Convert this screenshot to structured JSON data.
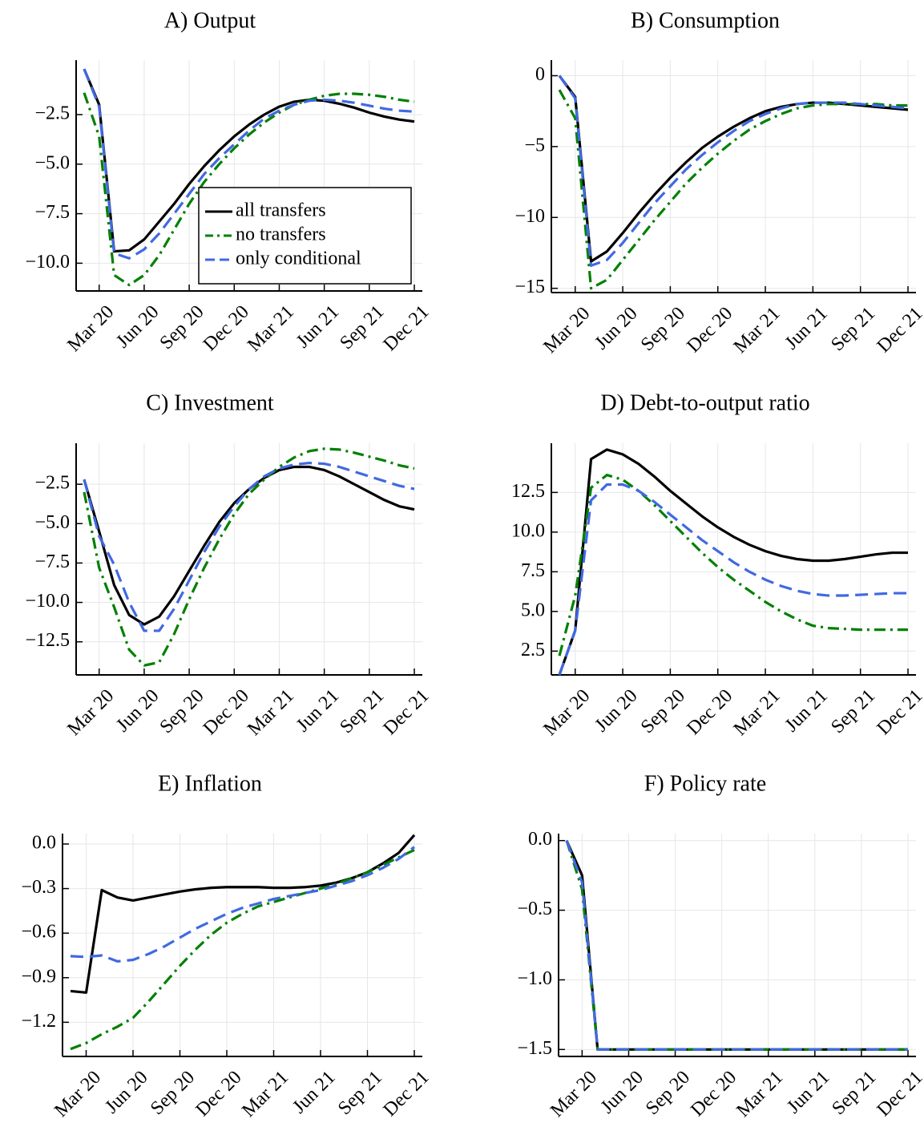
{
  "chart_data": [
    {
      "type": "line",
      "title": "A) Output",
      "categories": [
        null,
        "Mar 20",
        null,
        null,
        "Jun 20",
        null,
        null,
        "Sep 20",
        null,
        null,
        "Dec 20",
        null,
        null,
        "Mar 21",
        null,
        null,
        "Jun 21",
        null,
        null,
        "Sep 21",
        null,
        null,
        "Dec 21"
      ],
      "ylim": [
        -11.4,
        0.25
      ],
      "yticks": [
        {
          "value": -2.5,
          "label": "−2.5"
        },
        {
          "value": -5,
          "label": "−5.0"
        },
        {
          "value": -7.5,
          "label": "−7.5"
        },
        {
          "value": -10,
          "label": "−10.0"
        }
      ],
      "grid": true,
      "legend": "right",
      "series": [
        {
          "name": "all transfers",
          "color": "#000000",
          "dash": "solid",
          "values": [
            -0.2,
            -2.0,
            -9.4,
            -9.35,
            -8.8,
            -7.9,
            -7.0,
            -6.0,
            -5.1,
            -4.3,
            -3.6,
            -3.0,
            -2.5,
            -2.1,
            -1.85,
            -1.75,
            -1.8,
            -1.95,
            -2.15,
            -2.4,
            -2.6,
            -2.75,
            -2.85
          ]
        },
        {
          "name": "no transfers",
          "color": "#008000",
          "dash": "dashdot",
          "values": [
            -1.4,
            -3.6,
            -10.6,
            -11.1,
            -10.6,
            -9.6,
            -8.3,
            -7.0,
            -5.9,
            -5.0,
            -4.2,
            -3.5,
            -2.9,
            -2.4,
            -2.0,
            -1.75,
            -1.55,
            -1.45,
            -1.45,
            -1.5,
            -1.6,
            -1.75,
            -1.85
          ]
        },
        {
          "name": "only conditional",
          "color": "#4169e1",
          "dash": "dash",
          "values": [
            -0.2,
            -2.1,
            -9.5,
            -9.75,
            -9.3,
            -8.5,
            -7.5,
            -6.5,
            -5.5,
            -4.7,
            -4.0,
            -3.3,
            -2.7,
            -2.3,
            -2.0,
            -1.8,
            -1.75,
            -1.8,
            -1.9,
            -2.05,
            -2.2,
            -2.3,
            -2.35
          ]
        }
      ]
    },
    {
      "type": "line",
      "title": "B) Consumption",
      "categories": [
        null,
        "Mar 20",
        null,
        null,
        "Jun 20",
        null,
        null,
        "Sep 20",
        null,
        null,
        "Dec 20",
        null,
        null,
        "Mar 21",
        null,
        null,
        "Jun 21",
        null,
        null,
        "Sep 21",
        null,
        null,
        "Dec 21"
      ],
      "ylim": [
        -15.3,
        1.1
      ],
      "yticks": [
        0,
        {
          "value": -5,
          "label": "−5"
        },
        {
          "value": -10,
          "label": "−10"
        },
        {
          "value": -15,
          "label": "−15"
        }
      ],
      "grid": true,
      "series": [
        {
          "color": "#000000",
          "dash": "solid",
          "values": [
            0,
            -1.5,
            -13.1,
            -12.4,
            -11.1,
            -9.7,
            -8.4,
            -7.2,
            -6.1,
            -5.1,
            -4.3,
            -3.6,
            -3.0,
            -2.5,
            -2.2,
            -2.0,
            -1.9,
            -1.9,
            -2.0,
            -2.1,
            -2.2,
            -2.3,
            -2.4
          ]
        },
        {
          "color": "#008000",
          "dash": "dashdot",
          "values": [
            -1.0,
            -3.0,
            -15.0,
            -14.4,
            -13.0,
            -11.6,
            -10.2,
            -8.9,
            -7.6,
            -6.5,
            -5.5,
            -4.6,
            -3.8,
            -3.2,
            -2.7,
            -2.3,
            -2.1,
            -2.0,
            -2.0,
            -2.0,
            -2.0,
            -2.1,
            -2.1
          ]
        },
        {
          "color": "#4169e1",
          "dash": "dash",
          "values": [
            0,
            -1.6,
            -13.4,
            -13.0,
            -11.8,
            -10.4,
            -9.0,
            -7.8,
            -6.6,
            -5.6,
            -4.7,
            -3.9,
            -3.2,
            -2.7,
            -2.3,
            -2.0,
            -1.9,
            -1.9,
            -1.9,
            -2.0,
            -2.1,
            -2.2,
            -2.3
          ]
        }
      ]
    },
    {
      "type": "line",
      "title": "C) Investment",
      "categories": [
        null,
        "Mar 20",
        null,
        null,
        "Jun 20",
        null,
        null,
        "Sep 20",
        null,
        null,
        "Dec 20",
        null,
        null,
        "Mar 21",
        null,
        null,
        "Jun 21",
        null,
        null,
        "Sep 21",
        null,
        null,
        "Dec 21"
      ],
      "ylim": [
        -14.6,
        0.1
      ],
      "yticks": [
        {
          "value": -2.5,
          "label": "−2.5"
        },
        {
          "value": -5,
          "label": "−5.0"
        },
        {
          "value": -7.5,
          "label": "−7.5"
        },
        {
          "value": -10,
          "label": "−10.0"
        },
        {
          "value": -12.5,
          "label": "−12.5"
        }
      ],
      "grid": true,
      "series": [
        {
          "color": "#000000",
          "dash": "solid",
          "values": [
            -2.2,
            -5.5,
            -8.9,
            -10.8,
            -11.4,
            -10.9,
            -9.6,
            -8.0,
            -6.4,
            -4.9,
            -3.7,
            -2.8,
            -2.1,
            -1.6,
            -1.4,
            -1.4,
            -1.6,
            -2.0,
            -2.5,
            -3.0,
            -3.5,
            -3.9,
            -4.1
          ]
        },
        {
          "color": "#008000",
          "dash": "dashdot",
          "values": [
            -3.0,
            -7.8,
            -10.3,
            -13.0,
            -14.0,
            -13.8,
            -12.0,
            -9.8,
            -7.8,
            -6.0,
            -4.4,
            -3.1,
            -2.2,
            -1.4,
            -0.8,
            -0.4,
            -0.25,
            -0.3,
            -0.5,
            -0.75,
            -1.0,
            -1.3,
            -1.5
          ]
        },
        {
          "color": "#4169e1",
          "dash": "dash",
          "values": [
            -2.2,
            -5.8,
            -7.6,
            -10.0,
            -11.8,
            -11.8,
            -10.4,
            -8.6,
            -6.8,
            -5.2,
            -3.9,
            -2.8,
            -2.0,
            -1.5,
            -1.25,
            -1.15,
            -1.2,
            -1.4,
            -1.7,
            -2.0,
            -2.3,
            -2.6,
            -2.8
          ]
        }
      ]
    },
    {
      "type": "line",
      "title": "D) Debt-to-output ratio",
      "categories": [
        null,
        "Mar 20",
        null,
        null,
        "Jun 20",
        null,
        null,
        "Sep 20",
        null,
        null,
        "Dec 20",
        null,
        null,
        "Mar 21",
        null,
        null,
        "Jun 21",
        null,
        null,
        "Sep 21",
        null,
        null,
        "Dec 21"
      ],
      "ylim": [
        1.0,
        15.6
      ],
      "yticks": [
        2.5,
        {
          "value": 5,
          "label": "5.0"
        },
        7.5,
        {
          "value": 10,
          "label": "10.0"
        },
        12.5
      ],
      "grid": true,
      "series": [
        {
          "color": "#000000",
          "dash": "solid",
          "values": [
            1.0,
            3.8,
            14.6,
            15.2,
            14.9,
            14.3,
            13.5,
            12.6,
            11.8,
            11.0,
            10.3,
            9.7,
            9.2,
            8.8,
            8.5,
            8.3,
            8.2,
            8.2,
            8.3,
            8.45,
            8.6,
            8.7,
            8.7
          ]
        },
        {
          "color": "#008000",
          "dash": "dashdot",
          "values": [
            2.2,
            6.0,
            12.8,
            13.6,
            13.3,
            12.6,
            11.7,
            10.7,
            9.7,
            8.7,
            7.8,
            7.0,
            6.3,
            5.6,
            5.0,
            4.5,
            4.1,
            3.95,
            3.9,
            3.85,
            3.85,
            3.85,
            3.85
          ]
        },
        {
          "color": "#4169e1",
          "dash": "dash",
          "values": [
            1.0,
            3.8,
            12.0,
            13.0,
            13.0,
            12.6,
            11.9,
            11.1,
            10.3,
            9.5,
            8.8,
            8.1,
            7.5,
            7.0,
            6.6,
            6.3,
            6.1,
            6.0,
            6.0,
            6.05,
            6.1,
            6.15,
            6.15
          ]
        }
      ]
    },
    {
      "type": "line",
      "title": "E) Inflation",
      "categories": [
        null,
        "Mar 20",
        null,
        null,
        "Jun 20",
        null,
        null,
        "Sep 20",
        null,
        null,
        "Dec 20",
        null,
        null,
        "Mar 21",
        null,
        null,
        "Jun 21",
        null,
        null,
        "Sep 21",
        null,
        null,
        "Dec 21"
      ],
      "ylim": [
        -1.43,
        0.07
      ],
      "yticks": [
        {
          "value": 0,
          "label": "0.0"
        },
        {
          "value": -0.3,
          "label": "−0.3"
        },
        {
          "value": -0.6,
          "label": "−0.6"
        },
        {
          "value": -0.9,
          "label": "−0.9"
        },
        {
          "value": -1.2,
          "label": "−1.2"
        }
      ],
      "grid": true,
      "series": [
        {
          "color": "#000000",
          "dash": "solid",
          "values": [
            -0.99,
            -1.0,
            -0.31,
            -0.36,
            -0.38,
            -0.36,
            -0.34,
            -0.32,
            -0.305,
            -0.295,
            -0.29,
            -0.29,
            -0.29,
            -0.295,
            -0.295,
            -0.29,
            -0.28,
            -0.26,
            -0.23,
            -0.19,
            -0.13,
            -0.06,
            0.06
          ]
        },
        {
          "color": "#008000",
          "dash": "dashdot",
          "values": [
            -1.38,
            -1.34,
            -1.28,
            -1.23,
            -1.17,
            -1.06,
            -0.94,
            -0.82,
            -0.71,
            -0.61,
            -0.53,
            -0.47,
            -0.42,
            -0.39,
            -0.36,
            -0.33,
            -0.3,
            -0.27,
            -0.23,
            -0.19,
            -0.14,
            -0.09,
            -0.04
          ]
        },
        {
          "color": "#4169e1",
          "dash": "dash",
          "values": [
            -0.755,
            -0.76,
            -0.75,
            -0.79,
            -0.78,
            -0.74,
            -0.69,
            -0.63,
            -0.57,
            -0.52,
            -0.47,
            -0.43,
            -0.4,
            -0.37,
            -0.35,
            -0.33,
            -0.31,
            -0.28,
            -0.25,
            -0.21,
            -0.16,
            -0.1,
            -0.02
          ]
        }
      ]
    },
    {
      "type": "line",
      "title": "F) Policy rate",
      "categories": [
        null,
        "Mar 20",
        null,
        null,
        "Jun 20",
        null,
        null,
        "Sep 20",
        null,
        null,
        "Dec 20",
        null,
        null,
        "Mar 21",
        null,
        null,
        "Jun 21",
        null,
        null,
        "Sep 21",
        null,
        null,
        "Dec 21"
      ],
      "ylim": [
        -1.55,
        0.05
      ],
      "yticks": [
        {
          "value": 0,
          "label": "0.0"
        },
        {
          "value": -0.5,
          "label": "−0.5"
        },
        {
          "value": -1,
          "label": "−1.0"
        },
        {
          "value": -1.5,
          "label": "−1.5"
        }
      ],
      "grid": true,
      "series": [
        {
          "color": "#000000",
          "dash": "solid",
          "values": [
            0,
            -0.25,
            -1.5,
            -1.5,
            -1.5,
            -1.5,
            -1.5,
            -1.5,
            -1.5,
            -1.5,
            -1.5,
            -1.5,
            -1.5,
            -1.5,
            -1.5,
            -1.5,
            -1.5,
            -1.5,
            -1.5,
            -1.5,
            -1.5,
            -1.5,
            -1.5
          ]
        },
        {
          "color": "#008000",
          "dash": "dashdot",
          "values": [
            0,
            -0.35,
            -1.5,
            -1.5,
            -1.5,
            -1.5,
            -1.5,
            -1.5,
            -1.5,
            -1.5,
            -1.5,
            -1.5,
            -1.5,
            -1.5,
            -1.5,
            -1.5,
            -1.5,
            -1.5,
            -1.5,
            -1.5,
            -1.5,
            -1.5,
            -1.5
          ]
        },
        {
          "color": "#4169e1",
          "dash": "dash",
          "values": [
            0,
            -0.3,
            -1.5,
            -1.5,
            -1.5,
            -1.5,
            -1.5,
            -1.5,
            -1.5,
            -1.5,
            -1.5,
            -1.5,
            -1.5,
            -1.5,
            -1.5,
            -1.5,
            -1.5,
            -1.5,
            -1.5,
            -1.5,
            -1.5,
            -1.5,
            -1.5
          ]
        }
      ]
    }
  ]
}
